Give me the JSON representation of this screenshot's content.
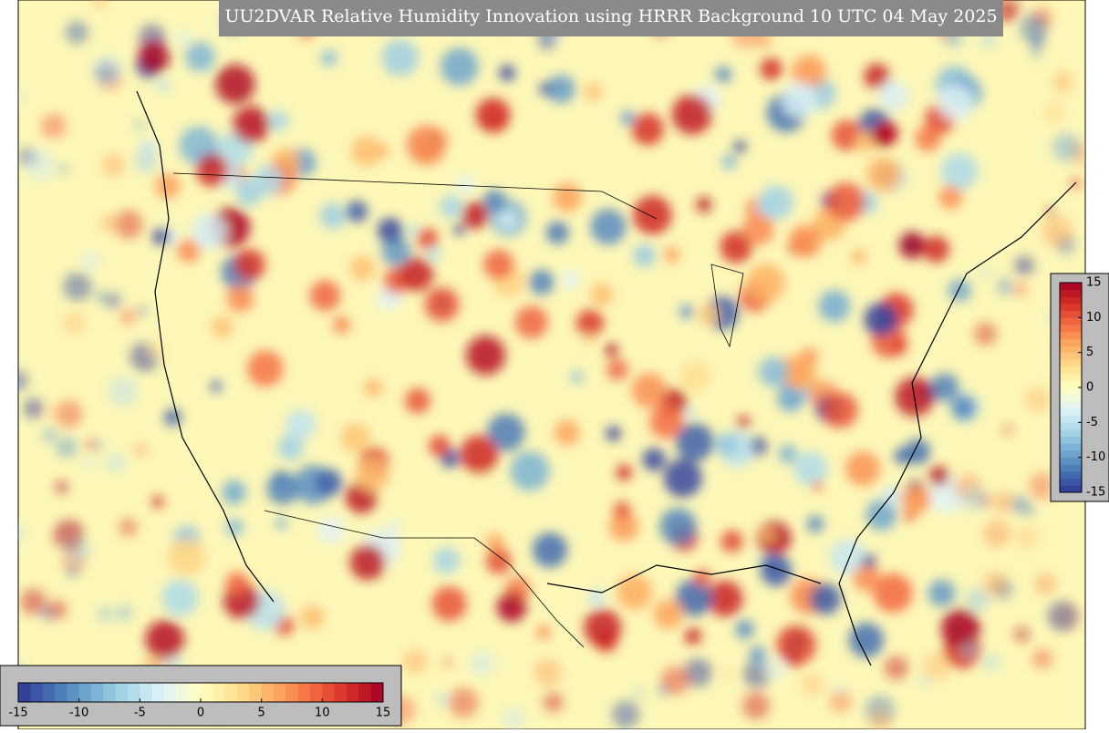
{
  "title": "UU2DVAR Relative Humidity Innovation using HRRR Background 10 UTC 04 May 2025",
  "colorbar": {
    "lim": [
      -15,
      15
    ],
    "ticks": [
      -15,
      -10,
      -5,
      0,
      5,
      10,
      15
    ]
  }
}
